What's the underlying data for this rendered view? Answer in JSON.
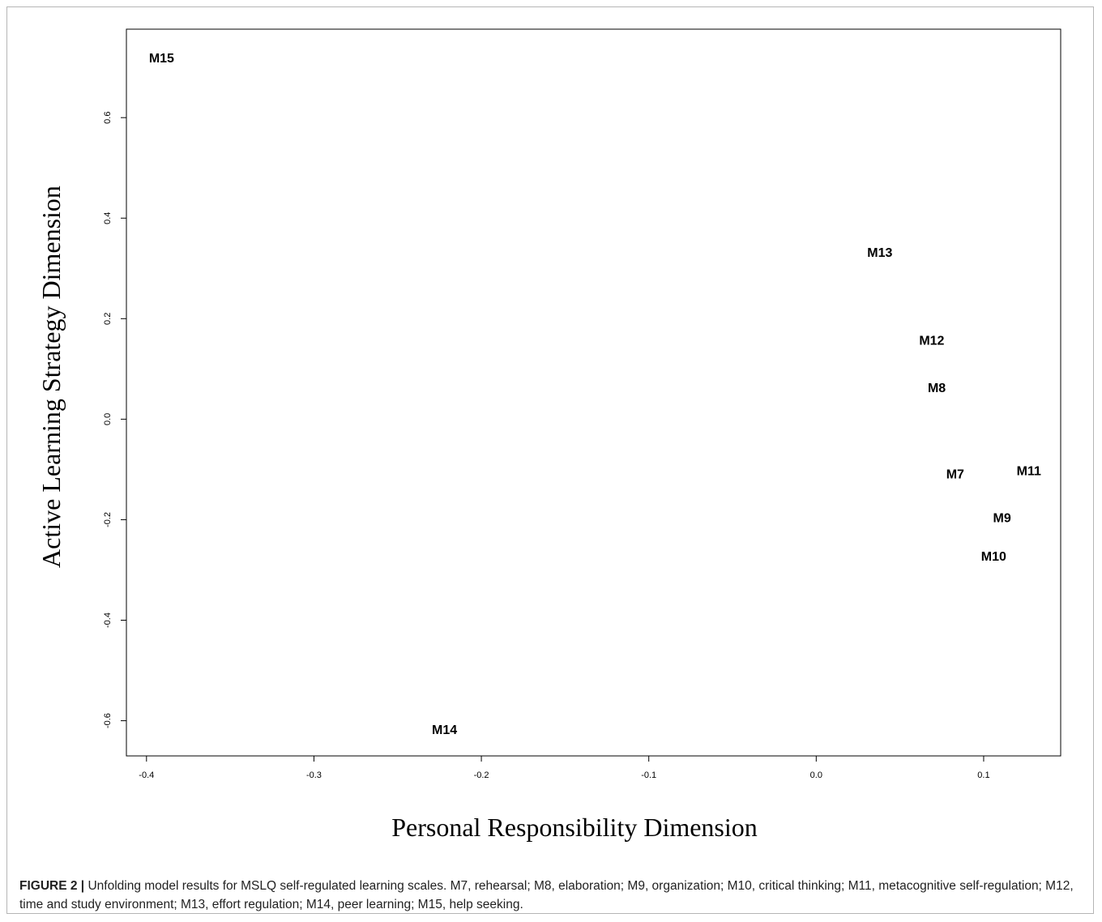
{
  "chart_data": {
    "type": "scatter",
    "xlabel": "Personal Responsibility Dimension",
    "ylabel": "Active Learning Strategy Dimension",
    "xlim": [
      -0.412,
      0.146
    ],
    "ylim": [
      -0.67,
      0.776
    ],
    "x_ticks": [
      -0.4,
      -0.3,
      -0.2,
      -0.1,
      0.0,
      0.1
    ],
    "x_tick_labels": [
      "-0.4",
      "-0.3",
      "-0.2",
      "-0.1",
      "0.0",
      "0.1"
    ],
    "y_ticks": [
      -0.6,
      -0.4,
      -0.2,
      0.0,
      0.2,
      0.4,
      0.6
    ],
    "y_tick_labels": [
      "-0.6",
      "-0.4",
      "-0.2",
      "0.0",
      "0.2",
      "0.4",
      "0.6"
    ],
    "grid": false,
    "points": [
      {
        "label": "M7",
        "x": 0.083,
        "y": -0.111
      },
      {
        "label": "M8",
        "x": 0.072,
        "y": 0.061
      },
      {
        "label": "M9",
        "x": 0.111,
        "y": -0.198
      },
      {
        "label": "M10",
        "x": 0.106,
        "y": -0.274
      },
      {
        "label": "M11",
        "x": 0.127,
        "y": -0.104
      },
      {
        "label": "M12",
        "x": 0.069,
        "y": 0.155
      },
      {
        "label": "M13",
        "x": 0.038,
        "y": 0.33
      },
      {
        "label": "M14",
        "x": -0.222,
        "y": -0.619
      },
      {
        "label": "M15",
        "x": -0.391,
        "y": 0.717
      }
    ]
  },
  "caption": {
    "label": "FIGURE 2 |",
    "text": " Unfolding model results for MSLQ self-regulated learning scales. M7, rehearsal; M8, elaboration; M9, organization; M10, critical thinking; M11, metacognitive self-regulation; M12, time and study environment; M13, effort regulation; M14, peer learning; M15, help seeking."
  }
}
